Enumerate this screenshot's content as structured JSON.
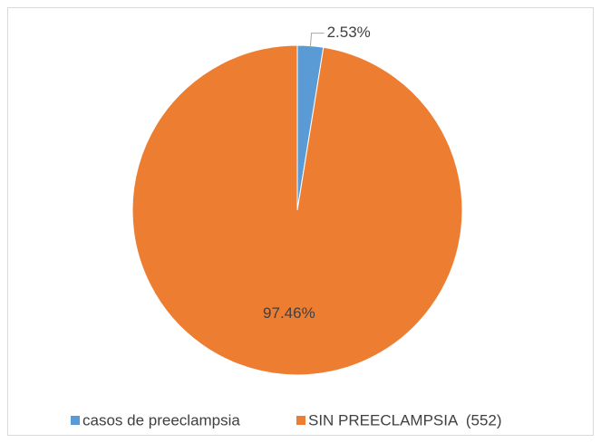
{
  "chart_data": {
    "type": "pie",
    "categories": [
      "casos de preeclampsia",
      "SIN PREECLAMPSIA  (552)"
    ],
    "values": [
      2.53,
      97.46
    ],
    "value_labels": [
      "2.53%",
      "97.46%"
    ],
    "colors": [
      "#5b9bd5",
      "#ed7d31"
    ],
    "legend": "bottom"
  }
}
